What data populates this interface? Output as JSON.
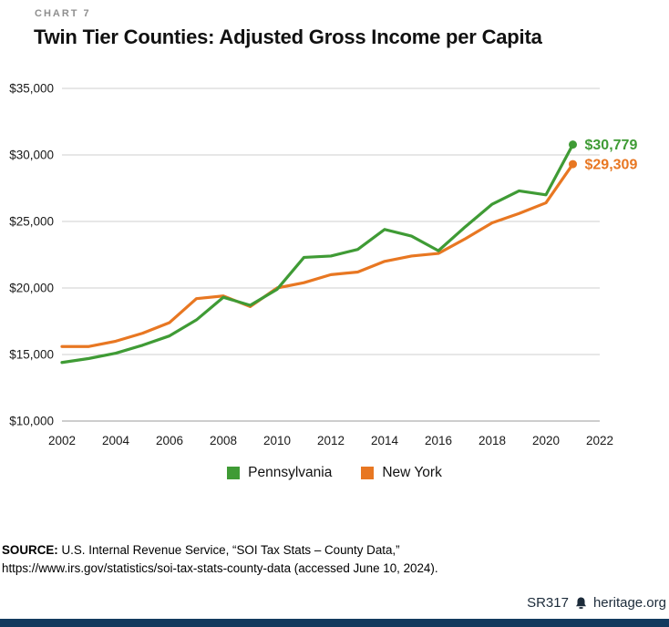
{
  "page": {
    "eyebrow": "CHART 7",
    "title": "Twin Tier Counties: Adjusted Gross Income per Capita",
    "source": {
      "label": "SOURCE:",
      "line1": " U.S. Internal Revenue Service, “SOI Tax Stats – County Data,”",
      "line2": "https://www.irs.gov/statistics/soi-tax-stats-county-data (accessed June 10, 2024)."
    },
    "footer": {
      "report_id": "SR317",
      "site": "heritage.org",
      "logo_icon": "liberty-bell-icon"
    }
  },
  "colors": {
    "pennsylvania": "#3f9b35",
    "new_york": "#e87722",
    "grid": "#cfcfcf",
    "axis_line": "#9b9b9b",
    "axis_text": "#1a1a1a",
    "footer_bar": "#123a5e"
  },
  "legend": [
    {
      "label": "Pennsylvania",
      "color": "#3f9b35"
    },
    {
      "label": "New York",
      "color": "#e87722"
    }
  ],
  "chart_data": {
    "type": "line",
    "title": "Twin Tier Counties: Adjusted Gross Income per Capita",
    "xlabel": "",
    "ylabel": "",
    "x": [
      2002,
      2003,
      2004,
      2005,
      2006,
      2007,
      2008,
      2009,
      2010,
      2011,
      2012,
      2013,
      2014,
      2015,
      2016,
      2017,
      2018,
      2019,
      2020,
      2021
    ],
    "series": [
      {
        "name": "Pennsylvania",
        "color": "#3f9b35",
        "end_label": "$30,779",
        "end_value": 30779,
        "values": [
          14400,
          14700,
          15100,
          15700,
          16400,
          17600,
          19300,
          18700,
          19900,
          22300,
          22400,
          22900,
          24400,
          23900,
          22800,
          24600,
          26300,
          27300,
          27000,
          30779
        ]
      },
      {
        "name": "New York",
        "color": "#e87722",
        "end_label": "$29,309",
        "end_value": 29309,
        "values": [
          15600,
          15600,
          16000,
          16600,
          17400,
          19200,
          19400,
          18600,
          20000,
          20400,
          21000,
          21200,
          22000,
          22400,
          22600,
          23700,
          24900,
          25600,
          26400,
          29309
        ]
      }
    ],
    "xlim": [
      2002,
      2022
    ],
    "ylim": [
      10000,
      35000
    ],
    "x_ticks": [
      2002,
      2004,
      2006,
      2008,
      2010,
      2012,
      2014,
      2016,
      2018,
      2020,
      2022
    ],
    "x_tick_labels": [
      "2002",
      "2004",
      "2006",
      "2008",
      "2010",
      "2012",
      "2014",
      "2016",
      "2018",
      "2020",
      "2022"
    ],
    "y_ticks": [
      10000,
      15000,
      20000,
      25000,
      30000,
      35000
    ],
    "y_tick_labels": [
      "$10,000",
      "$15,000",
      "$20,000",
      "$25,000",
      "$30,000",
      "$35,000"
    ],
    "grid": true,
    "legend_position": "bottom"
  }
}
